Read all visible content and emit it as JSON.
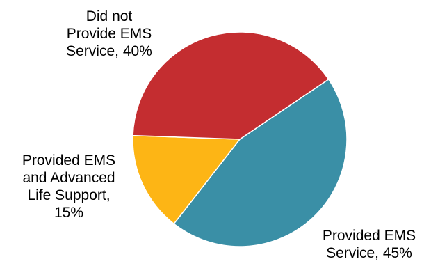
{
  "chart_data": {
    "type": "pie",
    "title": "",
    "slices": [
      {
        "category": "Did not Provide EMS Service",
        "value": 40,
        "label_lines": [
          "Did not",
          "Provide EMS",
          "Service, 40%"
        ],
        "color": "#C42D30"
      },
      {
        "category": "Provided EMS Service",
        "value": 45,
        "label_lines": [
          "Provided EMS",
          "Service, 45%"
        ],
        "color": "#3A8FA6"
      },
      {
        "category": "Provided EMS and Advanced Life Support",
        "value": 15,
        "label_lines": [
          "Provided EMS",
          "and Advanced",
          "Life Support,",
          "15%"
        ],
        "color": "#FDB515"
      }
    ],
    "legend": "none"
  }
}
